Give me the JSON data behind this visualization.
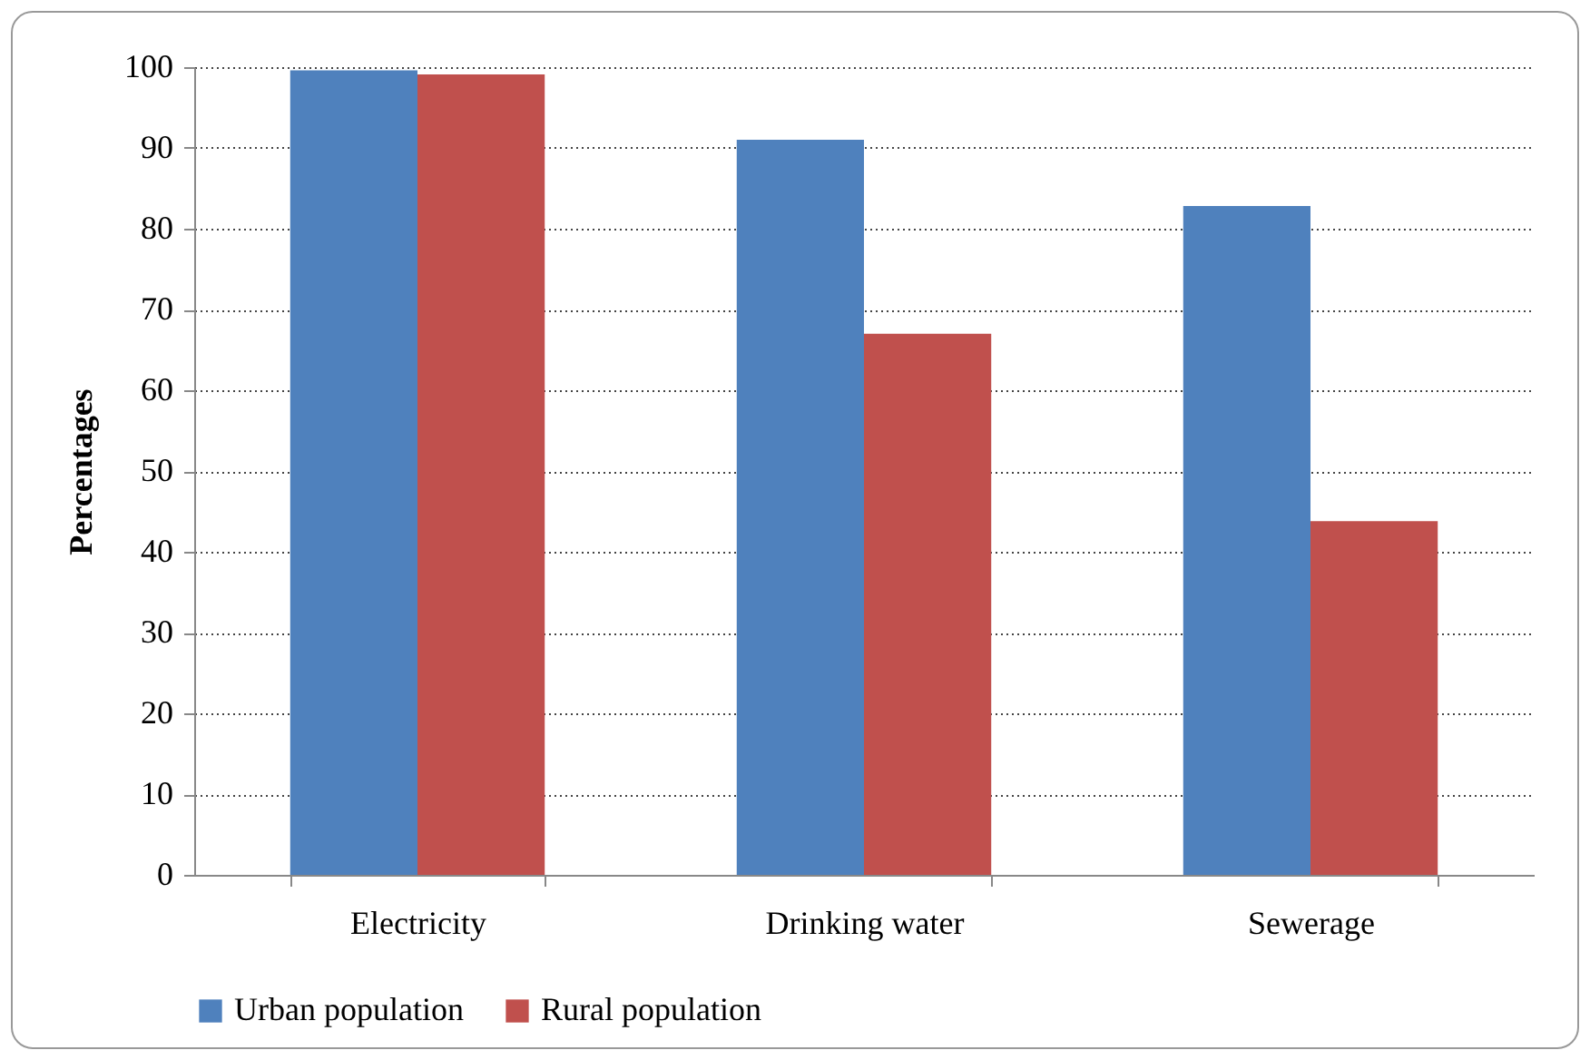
{
  "chart_data": {
    "type": "bar",
    "ylabel": "Percentages",
    "categories": [
      "Electricity",
      "Drinking water",
      "Sewerage"
    ],
    "series": [
      {
        "name": "Urban population",
        "color": "#4f81bd",
        "values": [
          99.6,
          91.0,
          82.8
        ]
      },
      {
        "name": "Rural population",
        "color": "#c0504d",
        "values": [
          99.1,
          67.0,
          43.8
        ]
      }
    ],
    "ylim": [
      0,
      100
    ],
    "yticks": [
      0,
      10,
      20,
      30,
      40,
      50,
      60,
      70,
      80,
      90,
      100
    ],
    "grid": "y",
    "legend": "bottom"
  }
}
